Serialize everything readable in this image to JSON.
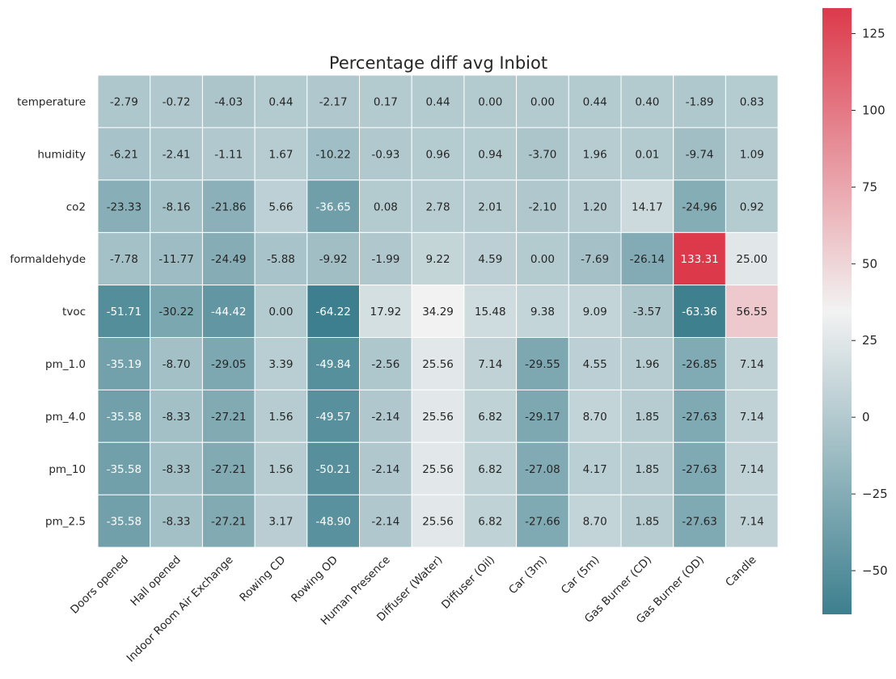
{
  "chart_data": {
    "type": "heatmap",
    "title": "Percentage diff avg Inbiot",
    "rows": [
      "temperature",
      "humidity",
      "co2",
      "formaldehyde",
      "tvoc",
      "pm_1.0",
      "pm_4.0",
      "pm_10",
      "pm_2.5"
    ],
    "columns": [
      "Doors opened",
      "Hall opened",
      "Indoor Room Air Exchange",
      "Rowing CD",
      "Rowing OD",
      "Human Presence",
      "Diffuser (Water)",
      "Diffuser (Oil)",
      "Car (3m)",
      "Car (5m)",
      "Gas Burner (CD)",
      "Gas Burner (OD)",
      "Candle"
    ],
    "values": [
      [
        -2.79,
        -0.72,
        -4.03,
        0.44,
        -2.17,
        0.17,
        0.44,
        0.0,
        0.0,
        0.44,
        0.4,
        -1.89,
        0.83
      ],
      [
        -6.21,
        -2.41,
        -1.11,
        1.67,
        -10.22,
        -0.93,
        0.96,
        0.94,
        -3.7,
        1.96,
        0.01,
        -9.74,
        1.09
      ],
      [
        -23.33,
        -8.16,
        -21.86,
        5.66,
        -36.65,
        0.08,
        2.78,
        2.01,
        -2.1,
        1.2,
        14.17,
        -24.96,
        0.92
      ],
      [
        -7.78,
        -11.77,
        -24.49,
        -5.88,
        -9.92,
        -1.99,
        9.22,
        4.59,
        0.0,
        -7.69,
        -26.14,
        133.31,
        25.0
      ],
      [
        -51.71,
        -30.22,
        -44.42,
        0.0,
        -64.22,
        17.92,
        34.29,
        15.48,
        9.38,
        9.09,
        -3.57,
        -63.36,
        56.55
      ],
      [
        -35.19,
        -8.7,
        -29.05,
        3.39,
        -49.84,
        -2.56,
        25.56,
        7.14,
        -29.55,
        4.55,
        1.96,
        -26.85,
        7.14
      ],
      [
        -35.58,
        -8.33,
        -27.21,
        1.56,
        -49.57,
        -2.14,
        25.56,
        6.82,
        -29.17,
        8.7,
        1.85,
        -27.63,
        7.14
      ],
      [
        -35.58,
        -8.33,
        -27.21,
        1.56,
        -50.21,
        -2.14,
        25.56,
        6.82,
        -27.08,
        4.17,
        1.85,
        -27.63,
        7.14
      ],
      [
        -35.58,
        -8.33,
        -27.21,
        3.17,
        -48.9,
        -2.14,
        25.56,
        6.82,
        -27.66,
        8.7,
        1.85,
        -27.63,
        7.14
      ]
    ],
    "colorbar": {
      "min": -64.22,
      "max": 133.31,
      "center": 34.545,
      "ticks": [
        -50,
        -25,
        0,
        25,
        50,
        75,
        100,
        125
      ],
      "tick_labels": [
        "−50",
        "−25",
        "0",
        "25",
        "50",
        "75",
        "100",
        "125"
      ],
      "low_color": "#3d7f8e",
      "mid_color": "#f2f2f2",
      "high_color": "#dc3a4b"
    },
    "grid": true,
    "value_format": "%.2f"
  }
}
